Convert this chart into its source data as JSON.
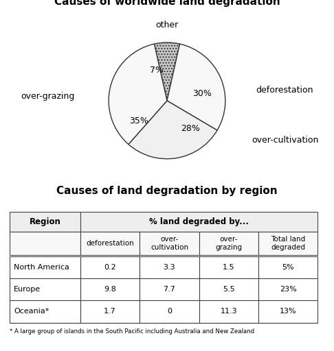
{
  "title_pie": "Causes of worldwide land degradation",
  "title_table": "Causes of land degradation by region",
  "pie_values": [
    7,
    30,
    28,
    35
  ],
  "pie_colors": [
    "#c8c8c8",
    "#f8f8f8",
    "#f0f0f0",
    "#f8f8f8"
  ],
  "pie_hatches": [
    "....",
    "",
    "",
    ""
  ],
  "pie_pct_labels": [
    "7%",
    "30%",
    "28%",
    "35%"
  ],
  "pie_ext_labels": [
    "other",
    "deforestation",
    "over-cultivation",
    "over-grazing"
  ],
  "pie_startangle": 102.6,
  "table_header1": [
    "Region",
    "% land degraded by..."
  ],
  "table_header2": [
    "",
    "deforestation",
    "over-\ncultivation",
    "over-\ngrazing",
    "Total land\ndegraded"
  ],
  "table_rows": [
    [
      "North America",
      "0.2",
      "3.3",
      "1.5",
      "5%"
    ],
    [
      "Europe",
      "9.8",
      "7.7",
      "5.5",
      "23%"
    ],
    [
      "Oceania*",
      "1.7",
      "0",
      "11.3",
      "13%"
    ]
  ],
  "footnote": "* A large group of islands in the South Pacific including Australia and New Zealand",
  "bg_color": "#ffffff"
}
